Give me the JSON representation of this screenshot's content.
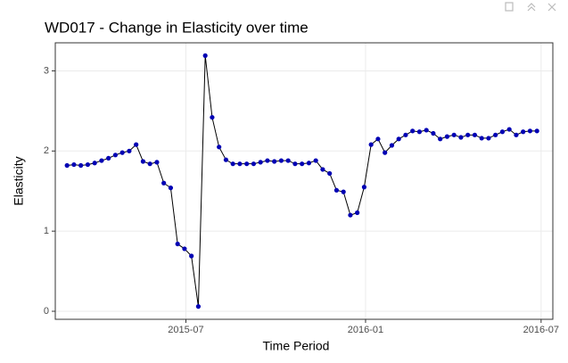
{
  "chart_data": {
    "type": "line",
    "title": "WD017 - Change in Elasticity over time",
    "x_label": "Time Period",
    "y_label": "Elasticity",
    "values": [
      1.82,
      1.83,
      1.82,
      1.83,
      1.85,
      1.88,
      1.91,
      1.95,
      1.98,
      2.0,
      2.08,
      1.87,
      1.84,
      1.86,
      1.6,
      1.54,
      0.84,
      0.78,
      0.69,
      0.06,
      3.19,
      2.42,
      2.05,
      1.89,
      1.84,
      1.84,
      1.84,
      1.84,
      1.86,
      1.88,
      1.87,
      1.88,
      1.88,
      1.84,
      1.84,
      1.85,
      1.88,
      1.77,
      1.72,
      1.51,
      1.49,
      1.2,
      1.23,
      1.55,
      2.08,
      2.15,
      1.98,
      2.07,
      2.15,
      2.2,
      2.25,
      2.24,
      2.26,
      2.22,
      2.15,
      2.18,
      2.2,
      2.17,
      2.2,
      2.2,
      2.16,
      2.16,
      2.2,
      2.24,
      2.27,
      2.2,
      2.24,
      2.25,
      2.25
    ],
    "line_color": "#000000",
    "point_color": "#0000b4",
    "xlim": [
      -1.7,
      70.3
    ],
    "xticks": [
      {
        "value": 17.2,
        "label": "2015-07"
      },
      {
        "value": 43.2,
        "label": "2016-01"
      },
      {
        "value": 68.6,
        "label": "2016-07"
      }
    ],
    "ylim": [
      -0.1,
      3.35
    ],
    "yticks": [
      0,
      1,
      2,
      3
    ],
    "grid": true
  }
}
